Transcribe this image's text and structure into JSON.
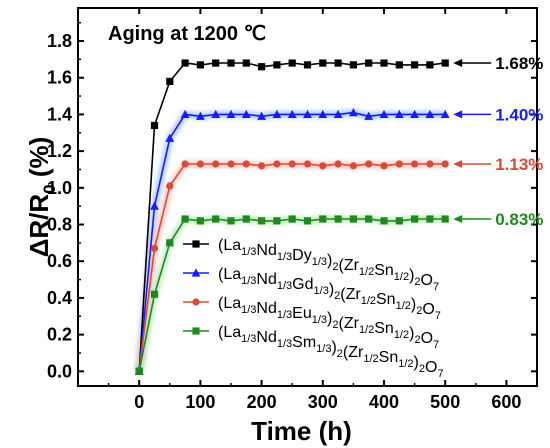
{
  "chart_data": {
    "type": "line",
    "title": "",
    "annotation": "Aging at 1200 ℃",
    "xlabel": "Time (h)",
    "ylabel": "ΔR/R0 (%)",
    "xlim": [
      -100,
      650
    ],
    "ylim": [
      -0.08,
      1.98
    ],
    "x_ticks": [
      0,
      100,
      200,
      300,
      400,
      500,
      600
    ],
    "y_ticks": [
      0.0,
      0.2,
      0.4,
      0.6,
      0.8,
      1.0,
      1.2,
      1.4,
      1.6,
      1.8
    ],
    "x": [
      0,
      25,
      50,
      75,
      100,
      125,
      150,
      175,
      200,
      225,
      250,
      275,
      300,
      325,
      350,
      375,
      400,
      425,
      450,
      475,
      500
    ],
    "series": [
      {
        "name": "(La1/3Nd1/3Dy1/3)2(Zr1/2Sn1/2)2O7",
        "color": "#000000",
        "marker": "square",
        "final_label": "1.68%",
        "values": [
          0.0,
          1.34,
          1.58,
          1.68,
          1.67,
          1.68,
          1.68,
          1.68,
          1.66,
          1.67,
          1.68,
          1.67,
          1.68,
          1.68,
          1.67,
          1.68,
          1.68,
          1.67,
          1.67,
          1.67,
          1.68
        ]
      },
      {
        "name": "(La1/3Nd1/3Gd1/3)2(Zr1/2Sn1/2)2O7",
        "color": "#1a1aff",
        "marker": "triangle",
        "final_label": "1.40%",
        "values": [
          0.0,
          0.9,
          1.27,
          1.4,
          1.39,
          1.4,
          1.4,
          1.4,
          1.39,
          1.4,
          1.4,
          1.4,
          1.4,
          1.4,
          1.41,
          1.39,
          1.4,
          1.4,
          1.4,
          1.4,
          1.4
        ]
      },
      {
        "name": "(La1/3Nd1/3Eu1/3)2(Zr1/2Sn1/2)2O7",
        "color": "#d94a3a",
        "marker": "circle",
        "final_label": "1.13%",
        "values": [
          0.0,
          0.67,
          1.01,
          1.13,
          1.13,
          1.13,
          1.13,
          1.13,
          1.12,
          1.13,
          1.13,
          1.13,
          1.12,
          1.13,
          1.12,
          1.13,
          1.12,
          1.13,
          1.13,
          1.13,
          1.13
        ]
      },
      {
        "name": "(La1/3Nd1/3Sm1/3)2(Zr1/2Sn1/2)2O7",
        "color": "#1e8a1e",
        "marker": "square",
        "final_label": "0.83%",
        "values": [
          0.0,
          0.42,
          0.7,
          0.83,
          0.82,
          0.83,
          0.82,
          0.83,
          0.82,
          0.82,
          0.83,
          0.82,
          0.83,
          0.83,
          0.83,
          0.83,
          0.82,
          0.82,
          0.83,
          0.83,
          0.83
        ]
      }
    ],
    "legend_position": "lower-right",
    "grid": false
  }
}
